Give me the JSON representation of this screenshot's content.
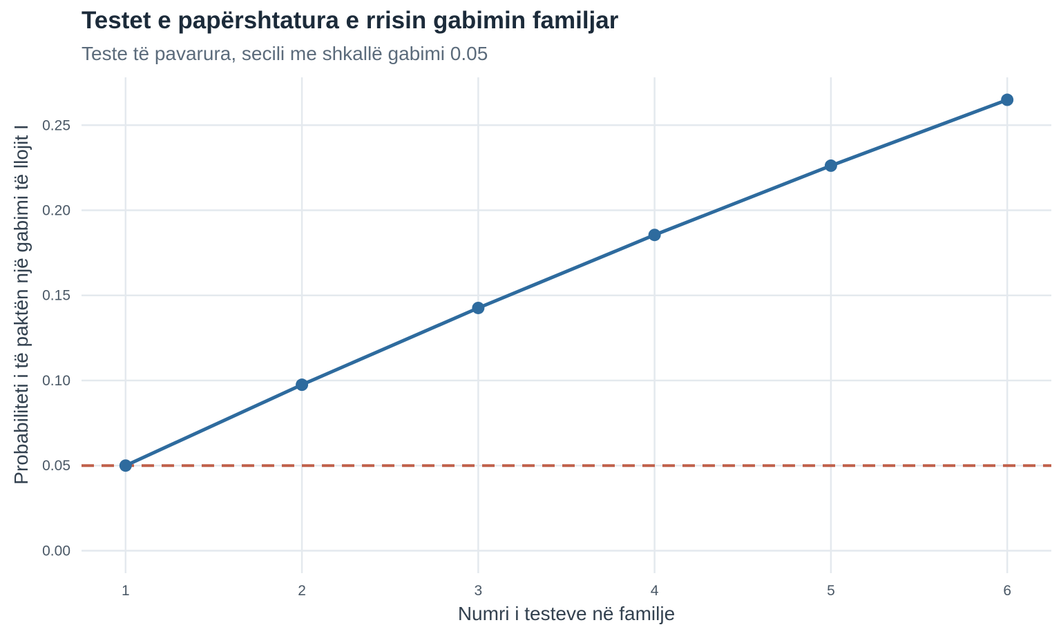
{
  "chart_data": {
    "type": "line",
    "title": "Testet e papërshtatura e rrisin gabimin familjar",
    "subtitle": "Teste të pavarura, secili me shkallë gabimi 0.05",
    "xlabel": "Numri i testeve në familje",
    "ylabel": "Probabiliteti i të paktën një gabimi të llojit I",
    "x": [
      1,
      2,
      3,
      4,
      5,
      6
    ],
    "series": [
      {
        "values": [
          0.05,
          0.0975,
          0.1426,
          0.1855,
          0.2262,
          0.2649
        ],
        "color": "#2e6b9e"
      }
    ],
    "reference_line": {
      "y": 0.05,
      "style": "dashed",
      "color": "#c0604a"
    },
    "x_ticks": [
      "1",
      "2",
      "3",
      "4",
      "5",
      "6"
    ],
    "y_ticks": [
      "0.00",
      "0.05",
      "0.10",
      "0.15",
      "0.20",
      "0.25"
    ],
    "xlim": [
      0.75,
      6.25
    ],
    "ylim": [
      -0.0132,
      0.2781
    ],
    "grid": true,
    "legend": "none"
  }
}
